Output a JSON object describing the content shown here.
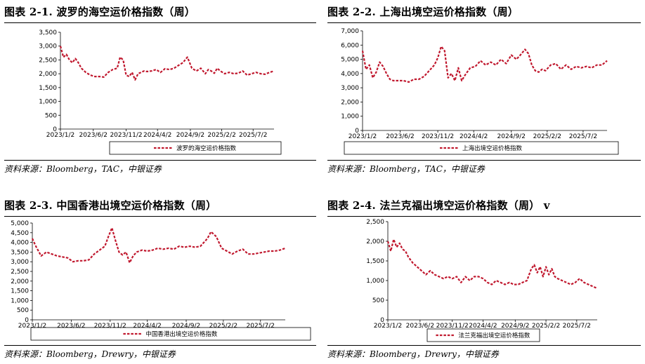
{
  "charts": [
    {
      "title": "图表 2-1. 波罗的海空运价格指数（周）",
      "source": "资料来源：Bloomberg，TAC，中银证券",
      "chart_data": {
        "type": "line",
        "title": "",
        "xlabel": "",
        "ylabel": "",
        "ylim": [
          0,
          3500
        ],
        "yticks": [
          0,
          500,
          1000,
          1500,
          2000,
          2500,
          3000,
          3500
        ],
        "ytick_labels": [
          "0",
          "500",
          "1,000",
          "1,500",
          "2,000",
          "2,500",
          "3,000",
          "3,500"
        ],
        "xlim": [
          0,
          143
        ],
        "xticks": [
          0,
          22,
          44,
          65,
          87,
          108,
          129
        ],
        "xtick_labels": [
          "2023/1/2",
          "2023/6/2",
          "2023/11/2",
          "2024/4/2",
          "2024/9/2",
          "2025/2/2",
          "2025/7/2"
        ],
        "series": [
          {
            "name": "波罗的海空运价格指数",
            "color": "#c0182e",
            "x": [
              0,
              2,
              4,
              6,
              8,
              10,
              12,
              14,
              17,
              20,
              23,
              26,
              29,
              32,
              35,
              38,
              40,
              42,
              44,
              46,
              48,
              50,
              52,
              54,
              56,
              58,
              61,
              64,
              67,
              70,
              73,
              76,
              79,
              82,
              85,
              88,
              91,
              94,
              97,
              99,
              101,
              103,
              105,
              107,
              110,
              113,
              116,
              119,
              122,
              125,
              128,
              131,
              134,
              137,
              140,
              143
            ],
            "y": [
              3000,
              2600,
              2700,
              2500,
              2400,
              2550,
              2400,
              2200,
              2050,
              1950,
              1900,
              1900,
              1880,
              2050,
              2150,
              2200,
              2600,
              2500,
              1950,
              1900,
              2050,
              1780,
              2000,
              2050,
              2100,
              2080,
              2100,
              2150,
              2050,
              2180,
              2150,
              2200,
              2300,
              2400,
              2600,
              2200,
              2100,
              2200,
              2000,
              2150,
              2100,
              2020,
              2200,
              2100,
              2000,
              2050,
              2000,
              2020,
              2100,
              1950,
              2000,
              2050,
              2000,
              1980,
              2050,
              2100
            ]
          }
        ],
        "legend": [
          "波罗的海空运价格指数"
        ],
        "legend_position": "bottom",
        "grid": false
      }
    },
    {
      "title": "图表 2-2. 上海出境空运价格指数（周）",
      "source": "资料来源：Bloomberg，TAC，中银证券",
      "chart_data": {
        "type": "line",
        "title": "",
        "xlabel": "",
        "ylabel": "",
        "ylim": [
          0,
          7000
        ],
        "yticks": [
          0,
          1000,
          2000,
          3000,
          4000,
          5000,
          6000,
          7000
        ],
        "ytick_labels": [
          "0",
          "1,000",
          "2,000",
          "3,000",
          "4,000",
          "5,000",
          "6,000",
          "7,000"
        ],
        "xlim": [
          0,
          143
        ],
        "xticks": [
          0,
          22,
          44,
          65,
          87,
          108,
          129
        ],
        "xtick_labels": [
          "2023/1/2",
          "2023/6/2",
          "2023/11/2",
          "2024/4/2",
          "2024/9/2",
          "2025/2/2",
          "2025/7/2"
        ],
        "series": [
          {
            "name": "上海出境空运价格指数",
            "color": "#c0182e",
            "x": [
              0,
              2,
              4,
              6,
              8,
              10,
              12,
              14,
              16,
              18,
              21,
              24,
              27,
              30,
              33,
              36,
              39,
              42,
              44,
              46,
              48,
              50,
              52,
              54,
              56,
              58,
              60,
              63,
              66,
              69,
              72,
              75,
              78,
              81,
              84,
              87,
              90,
              93,
              95,
              97,
              99,
              101,
              103,
              105,
              107,
              110,
              113,
              116,
              119,
              122,
              125,
              128,
              131,
              134,
              137,
              140,
              143
            ],
            "y": [
              5600,
              4300,
              4600,
              3700,
              4100,
              4800,
              4500,
              4000,
              3600,
              3500,
              3500,
              3500,
              3400,
              3600,
              3600,
              3800,
              4200,
              4600,
              5100,
              5900,
              5600,
              3700,
              4000,
              3500,
              4400,
              3500,
              3900,
              4400,
              4500,
              4900,
              4600,
              4800,
              4600,
              5000,
              4700,
              5300,
              5000,
              5400,
              5700,
              5400,
              4600,
              4200,
              4100,
              4300,
              4200,
              4600,
              4700,
              4300,
              4600,
              4300,
              4500,
              4400,
              4500,
              4400,
              4600,
              4600,
              4900
            ]
          }
        ],
        "legend": [
          "上海出境空运价格指数"
        ],
        "legend_position": "bottom",
        "grid": false
      }
    },
    {
      "title": "图表 2-3. 中国香港出境空运价格指数（周）",
      "source": "资料来源：Bloomberg，Drewry，中银证券",
      "chart_data": {
        "type": "line",
        "title": "",
        "xlabel": "",
        "ylabel": "",
        "ylim": [
          0,
          5000
        ],
        "yticks": [
          0,
          500,
          1000,
          1500,
          2000,
          2500,
          3000,
          3500,
          4000,
          4500,
          5000
        ],
        "ytick_labels": [
          "0",
          "500",
          "1,000",
          "1,500",
          "2,000",
          "2,500",
          "3,000",
          "3,500",
          "4,000",
          "4,500",
          "5,000"
        ],
        "xlim": [
          0,
          143
        ],
        "xticks": [
          0,
          22,
          44,
          65,
          87,
          108,
          129
        ],
        "xtick_labels": [
          "2023/1/2",
          "2023/6/2",
          "2023/11/2",
          "2024/4/2",
          "2024/9/2",
          "2025/2/2",
          "2025/7/2"
        ],
        "series": [
          {
            "name": "中国香港出境空运价格指数",
            "color": "#c0182e",
            "x": [
              0,
              2,
              5,
              8,
              11,
              14,
              17,
              20,
              23,
              26,
              29,
              32,
              35,
              38,
              41,
              43,
              45,
              47,
              49,
              51,
              53,
              55,
              57,
              59,
              62,
              65,
              68,
              71,
              74,
              77,
              80,
              83,
              86,
              89,
              92,
              95,
              97,
              99,
              101,
              104,
              107,
              110,
              113,
              116,
              119,
              122,
              125,
              128,
              131,
              134,
              137,
              140,
              143
            ],
            "y": [
              4200,
              3800,
              3300,
              3500,
              3400,
              3300,
              3250,
              3200,
              3000,
              3050,
              3050,
              3100,
              3400,
              3600,
              3800,
              4300,
              4750,
              4100,
              3500,
              3350,
              3500,
              2950,
              3300,
              3500,
              3600,
              3550,
              3600,
              3700,
              3650,
              3700,
              3650,
              3800,
              3750,
              3800,
              3750,
              3800,
              4000,
              4200,
              4550,
              4300,
              3700,
              3550,
              3400,
              3550,
              3650,
              3400,
              3400,
              3450,
              3500,
              3550,
              3550,
              3600,
              3700
            ]
          }
        ],
        "legend": [
          "中国香港出境空运价格指数"
        ],
        "legend_position": "bottom",
        "grid": false
      }
    },
    {
      "title": "图表 2-4. 法兰克福出境空运价格指数（周） v",
      "source": "资料来源：Bloomberg，Drewry，中银证券",
      "chart_data": {
        "type": "line",
        "title": "",
        "xlabel": "",
        "ylabel": "",
        "ylim": [
          0,
          2500
        ],
        "yticks": [
          0,
          500,
          1000,
          1500,
          2000,
          2500
        ],
        "ytick_labels": [
          "0",
          "500",
          "1,000",
          "1,500",
          "2,000",
          "2,500"
        ],
        "xlim": [
          0,
          143
        ],
        "xticks": [
          0,
          22,
          44,
          65,
          87,
          108,
          129
        ],
        "xtick_labels": [
          "2023/1/2",
          "2023/6/2",
          "2023/11/2",
          "2024/4/2",
          "2024/9/2",
          "2025/2/2",
          "2025/7/2"
        ],
        "series": [
          {
            "name": "法兰克福出境空运价格指数",
            "color": "#c0182e",
            "x": [
              0,
              2,
              4,
              6,
              8,
              10,
              12,
              14,
              17,
              20,
              23,
              26,
              29,
              32,
              35,
              38,
              41,
              44,
              47,
              50,
              53,
              56,
              59,
              62,
              65,
              68,
              71,
              74,
              77,
              80,
              83,
              86,
              89,
              92,
              95,
              98,
              100,
              102,
              104,
              106,
              108,
              110,
              112,
              114,
              116,
              119,
              122,
              125,
              128,
              131,
              134,
              137,
              140,
              143
            ],
            "y": [
              2000,
              1750,
              2050,
              1850,
              1950,
              1800,
              1750,
              1600,
              1450,
              1350,
              1250,
              1150,
              1250,
              1150,
              1100,
              1050,
              1100,
              1050,
              1100,
              950,
              1100,
              1000,
              1100,
              1100,
              1050,
              950,
              900,
              1000,
              950,
              900,
              950,
              900,
              900,
              950,
              1000,
              1300,
              1400,
              1200,
              1350,
              1100,
              1350,
              1150,
              1300,
              1100,
              1050,
              1000,
              950,
              900,
              950,
              1050,
              950,
              900,
              850,
              800
            ]
          }
        ],
        "legend": [
          "法兰克福出境空运价格指数"
        ],
        "legend_position": "bottom",
        "grid": false
      }
    }
  ]
}
